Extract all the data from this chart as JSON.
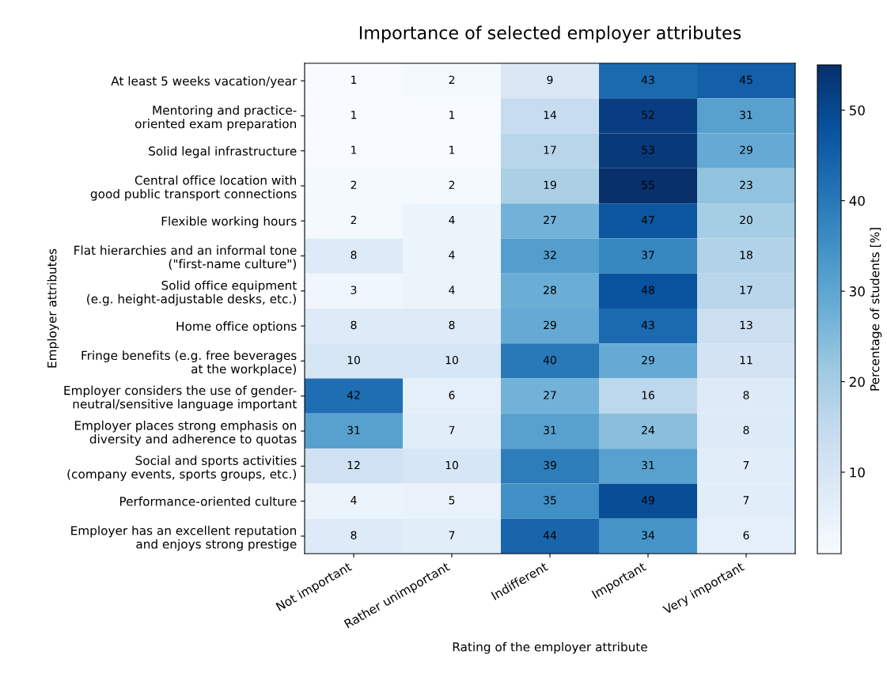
{
  "chart_data": {
    "type": "heatmap",
    "title": "Importance of selected employer attributes",
    "xlabel": "Rating of the employer attribute",
    "ylabel": "Employer attributes",
    "clabel": "Percentage of students [%]",
    "categories": [
      "Not important",
      "Rather unimportant",
      "Indifferent",
      "Important",
      "Very important"
    ],
    "y_categories": [
      "At least 5 weeks vacation/year",
      "Mentoring and practice-\noriented exam preparation",
      "Solid legal infrastructure",
      "Central office location with\ngood public transport connections",
      "Flexible working hours",
      "Flat hierarchies and an informal tone\n(\"first-name culture\")",
      "Solid office equipment\n(e.g. height-adjustable desks, etc.)",
      "Home office options",
      "Fringe benefits (e.g. free beverages\nat the workplace)",
      "Employer considers the use of gender-\nneutral/sensitive language important",
      "Employer places strong emphasis on\ndiversity and adherence to quotas",
      "Social and sports activities\n(company events, sports groups, etc.)",
      "Performance-oriented culture",
      "Employer has an excellent reputation\nand enjoys strong prestige"
    ],
    "cells": [
      [
        1,
        2,
        9,
        43,
        45
      ],
      [
        1,
        1,
        14,
        52,
        31
      ],
      [
        1,
        1,
        17,
        53,
        29
      ],
      [
        2,
        2,
        19,
        55,
        23
      ],
      [
        2,
        4,
        27,
        47,
        20
      ],
      [
        8,
        4,
        32,
        37,
        18
      ],
      [
        3,
        4,
        28,
        48,
        17
      ],
      [
        8,
        8,
        29,
        43,
        13
      ],
      [
        10,
        10,
        40,
        29,
        11
      ],
      [
        42,
        6,
        27,
        16,
        8
      ],
      [
        31,
        7,
        31,
        24,
        8
      ],
      [
        12,
        10,
        39,
        31,
        7
      ],
      [
        4,
        5,
        35,
        49,
        7
      ],
      [
        8,
        7,
        44,
        34,
        6
      ]
    ],
    "clim": [
      1,
      55
    ],
    "cticks": [
      10,
      20,
      30,
      40,
      50
    ],
    "data_labels": true
  }
}
